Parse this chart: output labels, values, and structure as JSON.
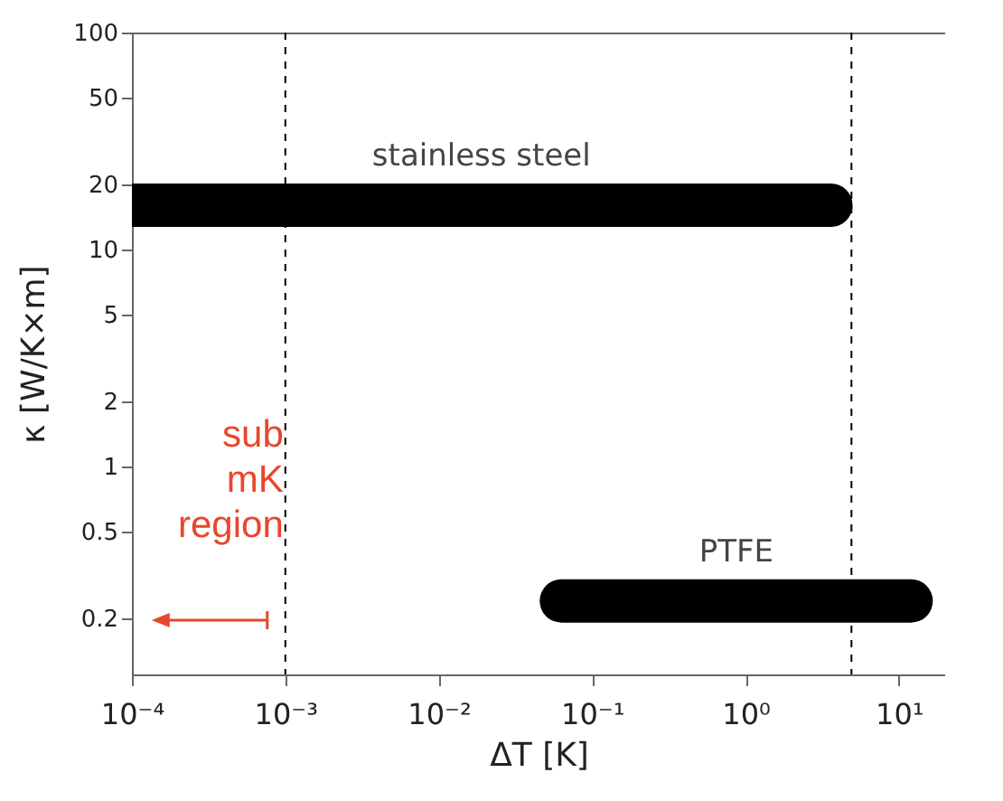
{
  "chart_data": {
    "type": "line",
    "xlabel": "ΔT [K]",
    "ylabel": "κ [W/K×m]",
    "log": "xy",
    "grid": false,
    "line_style": "solid",
    "xlim": [
      0.0001,
      20
    ],
    "ylim": [
      0.11,
      100
    ],
    "xticks": [
      {
        "value": 0.0001,
        "label": "10⁻⁴"
      },
      {
        "value": 0.001,
        "label": "10⁻³"
      },
      {
        "value": 0.01,
        "label": "10⁻²"
      },
      {
        "value": 0.1,
        "label": "10⁻¹"
      },
      {
        "value": 1,
        "label": "10⁰"
      },
      {
        "value": 10,
        "label": "10¹"
      }
    ],
    "yticks": [
      0.2,
      0.5,
      1,
      2,
      5,
      10,
      20,
      50,
      100
    ],
    "series": [
      {
        "name": "stainless steel",
        "color": "#000000",
        "x": [
          0.0001,
          3.6
        ],
        "values": [
          16,
          16
        ]
      },
      {
        "name": "PTFE",
        "color": "#000000",
        "x": [
          0.063,
          12
        ],
        "values": [
          0.24,
          0.24
        ]
      }
    ],
    "ref_lines": [
      {
        "axis": "x",
        "value": 0.001,
        "line_style": "dashed",
        "color": "#000000"
      },
      {
        "axis": "x",
        "value": 4.9,
        "line_style": "dashed",
        "color": "#000000"
      }
    ],
    "annotations": [
      "sub\nmK\nregion"
    ]
  }
}
